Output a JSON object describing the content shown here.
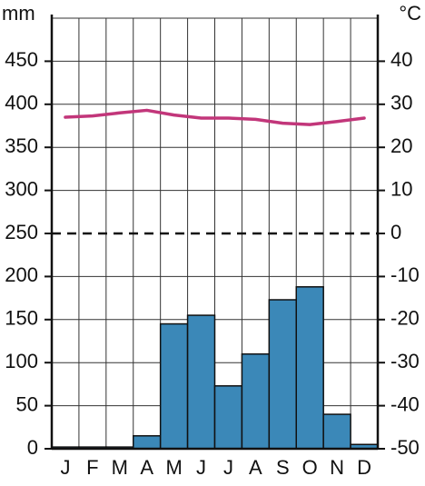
{
  "chart_data": {
    "type": "bar",
    "ylabel": "mm",
    "y2label": "°C",
    "categories": [
      "J",
      "F",
      "M",
      "A",
      "M",
      "J",
      "J",
      "A",
      "S",
      "O",
      "N",
      "D"
    ],
    "series": [
      {
        "type": "bar",
        "color": "#3b88b8",
        "values": [
          2,
          2,
          2,
          15,
          145,
          155,
          73,
          110,
          173,
          188,
          40,
          5
        ]
      },
      {
        "type": "line",
        "axis": "y2",
        "color": "#c2367a",
        "values": [
          27,
          27.3,
          28,
          28.6,
          27.5,
          26.8,
          26.8,
          26.5,
          25.6,
          25.3,
          26,
          26.8
        ]
      }
    ],
    "ylim": [
      0,
      500
    ],
    "yticks": [
      0,
      50,
      100,
      150,
      200,
      250,
      300,
      350,
      400,
      450
    ],
    "y2lim": [
      -50,
      50
    ],
    "y2ticks": [
      -50,
      -40,
      -30,
      -20,
      -10,
      0,
      10,
      20,
      30,
      40
    ],
    "grid": true
  }
}
